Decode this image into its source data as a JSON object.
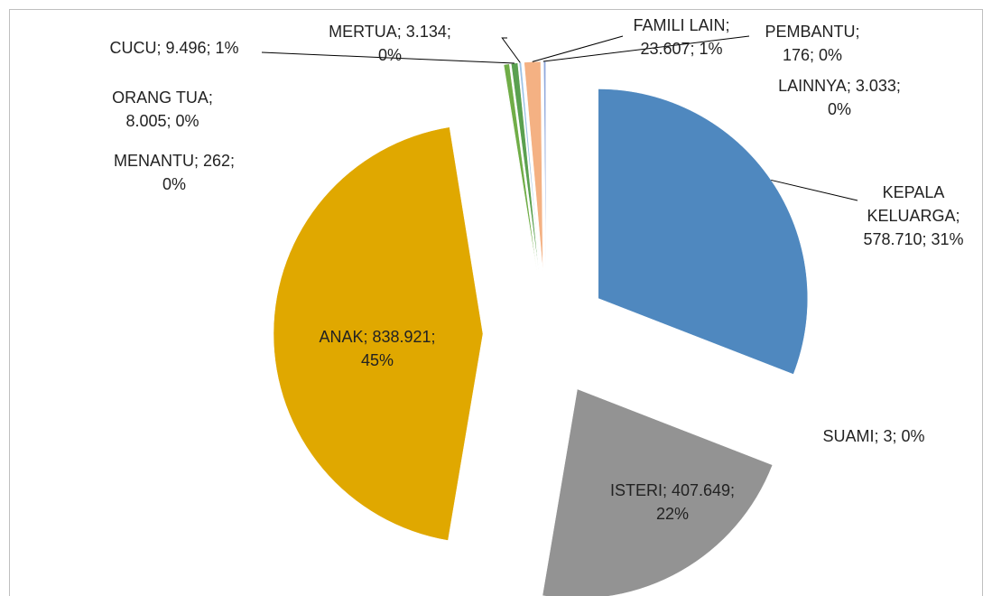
{
  "chart_data": {
    "type": "pie",
    "categories": [
      "KEPALA KELUARGA",
      "SUAMI",
      "ISTERI",
      "ANAK",
      "MENANTU",
      "ORANG TUA",
      "CUCU",
      "MERTUA",
      "FAMILI LAIN",
      "PEMBANTU",
      "LAINNYA"
    ],
    "values": [
      578710,
      3,
      407649,
      838921,
      262,
      8005,
      9496,
      3134,
      23607,
      176,
      3033
    ],
    "data_labels": [
      "KEPALA KELUARGA; 578.710; 31%",
      "SUAMI; 3; 0%",
      "ISTERI; 407.649; 22%",
      "ANAK; 838.921; 45%",
      "MENANTU; 262; 0%",
      "ORANG TUA; 8.005; 0%",
      "CUCU; 9.496; 1%",
      "MERTUA; 3.134; 0%",
      "FAMILI LAIN; 23.607; 1%",
      "PEMBANTU; 176; 0%",
      "LAINNYA; 3.033; 0%"
    ],
    "colors": [
      "#4f88bf",
      "#c0504d",
      "#939393",
      "#e0a800",
      "#4472c4",
      "#70ad47",
      "#5aa050",
      "#9dc3e6",
      "#f4b183",
      "#bfbfbf",
      "#8fa8dc"
    ]
  }
}
